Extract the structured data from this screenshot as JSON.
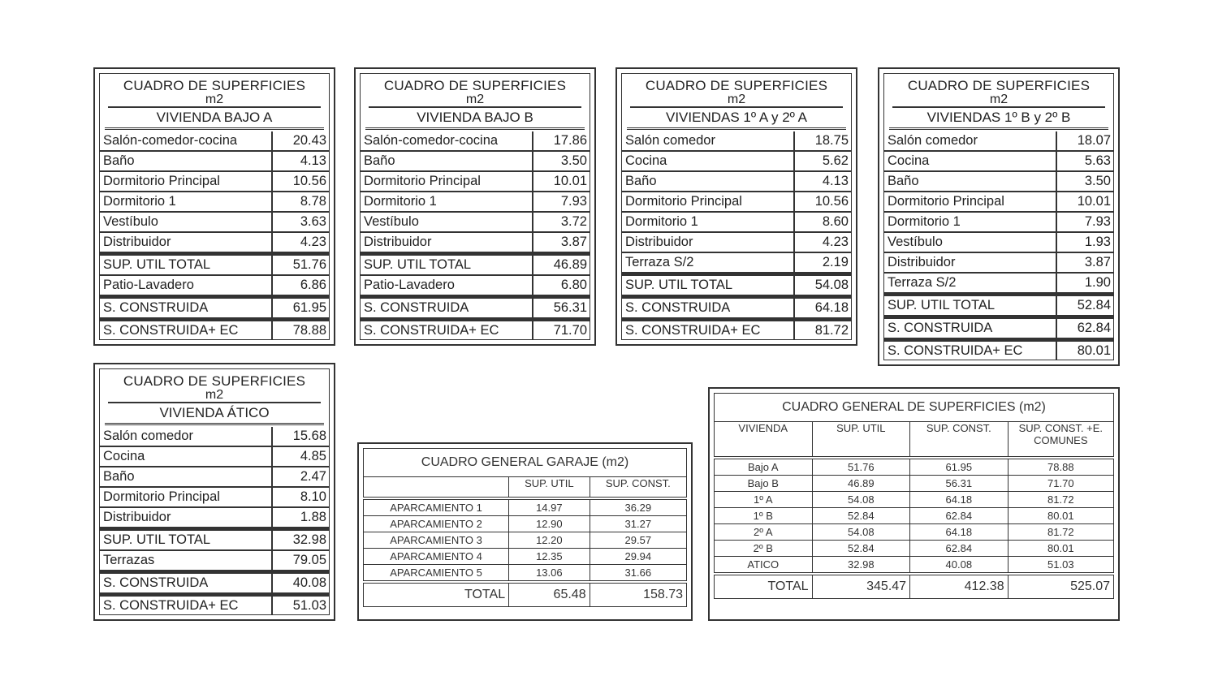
{
  "unit_tables": [
    {
      "title": "CUADRO DE SUPERFICIES",
      "unit": "m2",
      "heading": "VIVIENDA BAJO A",
      "rows": [
        [
          "Salón-comedor-cocina",
          "20.43"
        ],
        [
          "Baño",
          "4.13"
        ],
        [
          "Dormitorio Principal",
          "10.56"
        ],
        [
          "Dormitorio 1",
          "8.78"
        ],
        [
          "Vestíbulo",
          "3.63"
        ],
        [
          "Distribuidor",
          "4.23"
        ],
        [
          "SUP. UTIL TOTAL",
          "51.76"
        ],
        [
          "Patio-Lavadero",
          "6.86"
        ],
        [
          "S. CONSTRUIDA",
          "61.95"
        ],
        [
          "S. CONSTRUIDA+ EC",
          "78.88"
        ]
      ]
    },
    {
      "title": "CUADRO DE SUPERFICIES",
      "unit": "m2",
      "heading": "VIVIENDA BAJO B",
      "rows": [
        [
          "Salón-comedor-cocina",
          "17.86"
        ],
        [
          "Baño",
          "3.50"
        ],
        [
          "Dormitorio Principal",
          "10.01"
        ],
        [
          "Dormitorio 1",
          "7.93"
        ],
        [
          "Vestíbulo",
          "3.72"
        ],
        [
          "Distribuidor",
          "3.87"
        ],
        [
          "SUP. UTIL TOTAL",
          "46.89"
        ],
        [
          "Patio-Lavadero",
          "6.80"
        ],
        [
          "S. CONSTRUIDA",
          "56.31"
        ],
        [
          "S. CONSTRUIDA+ EC",
          "71.70"
        ]
      ]
    },
    {
      "title": "CUADRO DE SUPERFICIES",
      "unit": "m2",
      "heading": "VIVIENDAS 1º A y 2º A",
      "rows": [
        [
          "Salón comedor",
          "18.75"
        ],
        [
          "Cocina",
          "5.62"
        ],
        [
          "Baño",
          "4.13"
        ],
        [
          "Dormitorio Principal",
          "10.56"
        ],
        [
          "Dormitorio 1",
          "8.60"
        ],
        [
          "Distribuidor",
          "4.23"
        ],
        [
          "Terraza S/2",
          "2.19"
        ],
        [
          "SUP. UTIL TOTAL",
          "54.08"
        ],
        [
          "S. CONSTRUIDA",
          "64.18"
        ],
        [
          "S. CONSTRUIDA+ EC",
          "81.72"
        ]
      ]
    },
    {
      "title": "CUADRO DE SUPERFICIES",
      "unit": "m2",
      "heading": "VIVIENDAS 1º B y 2º B",
      "rows": [
        [
          "Salón comedor",
          "18.07"
        ],
        [
          "Cocina",
          "5.63"
        ],
        [
          "Baño",
          "3.50"
        ],
        [
          "Dormitorio Principal",
          "10.01"
        ],
        [
          "Dormitorio 1",
          "7.93"
        ],
        [
          "Vestíbulo",
          "1.93"
        ],
        [
          "Distribuidor",
          "3.87"
        ],
        [
          "Terraza S/2",
          "1.90"
        ],
        [
          "SUP. UTIL TOTAL",
          "52.84"
        ],
        [
          "S. CONSTRUIDA",
          "62.84"
        ],
        [
          "S. CONSTRUIDA+ EC",
          "80.01"
        ]
      ]
    },
    {
      "title": "CUADRO DE SUPERFICIES",
      "unit": "m2",
      "heading": "VIVIENDA ÁTICO",
      "rows": [
        [
          "Salón comedor",
          "15.68"
        ],
        [
          "Cocina",
          "4.85"
        ],
        [
          "Baño",
          "2.47"
        ],
        [
          "Dormitorio Principal",
          "8.10"
        ],
        [
          "Distribuidor",
          "1.88"
        ],
        [
          "SUP. UTIL TOTAL",
          "32.98"
        ],
        [
          "Terrazas",
          "79.05"
        ],
        [
          "S. CONSTRUIDA",
          "40.08"
        ],
        [
          "S. CONSTRUIDA+ EC",
          "51.03"
        ]
      ]
    }
  ],
  "garage": {
    "title": "CUADRO GENERAL GARAJE (m2)",
    "headers": [
      "",
      "SUP. UTIL",
      "SUP. CONST."
    ],
    "rows": [
      [
        "APARCAMIENTO 1",
        "14.97",
        "36.29"
      ],
      [
        "APARCAMIENTO 2",
        "12.90",
        "31.27"
      ],
      [
        "APARCAMIENTO 3",
        "12.20",
        "29.57"
      ],
      [
        "APARCAMIENTO 4",
        "12.35",
        "29.94"
      ],
      [
        "APARCAMIENTO 5",
        "13.06",
        "31.66"
      ]
    ],
    "total": [
      "TOTAL",
      "65.48",
      "158.73"
    ]
  },
  "general": {
    "title": "CUADRO GENERAL DE SUPERFICIES (m2)",
    "headers": [
      "VIVIENDA",
      "SUP. UTIL",
      "SUP. CONST.",
      "SUP. CONST. +E. COMUNES"
    ],
    "rows": [
      [
        "Bajo A",
        "51.76",
        "61.95",
        "78.88"
      ],
      [
        "Bajo B",
        "46.89",
        "56.31",
        "71.70"
      ],
      [
        "1º A",
        "54.08",
        "64.18",
        "81.72"
      ],
      [
        "1º B",
        "52.84",
        "62.84",
        "80.01"
      ],
      [
        "2º A",
        "54.08",
        "64.18",
        "81.72"
      ],
      [
        "2º B",
        "52.84",
        "62.84",
        "80.01"
      ],
      [
        "ATICO",
        "32.98",
        "40.08",
        "51.03"
      ]
    ],
    "total": [
      "TOTAL",
      "345.47",
      "412.38",
      "525.07"
    ]
  }
}
